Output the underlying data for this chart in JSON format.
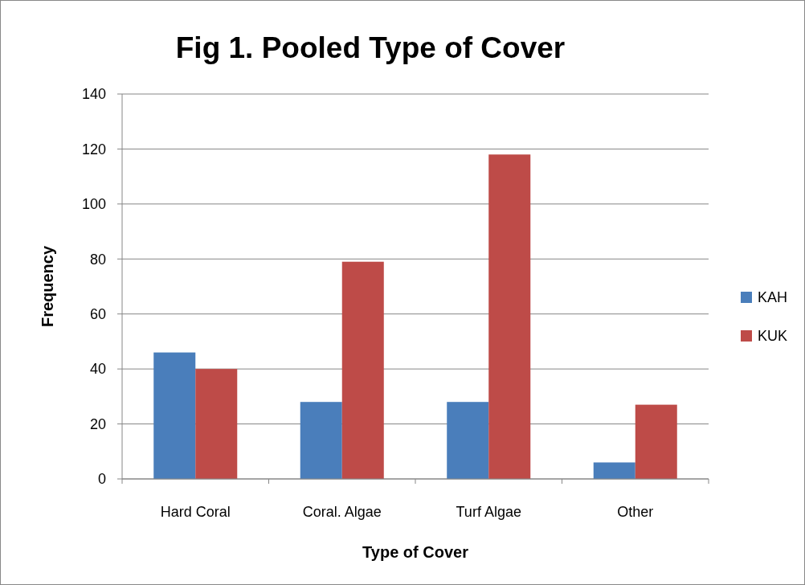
{
  "chart_data": {
    "type": "bar",
    "title": "Fig 1. Pooled Type of Cover",
    "xlabel": "Type of Cover",
    "ylabel": "Frequency",
    "categories": [
      "Hard Coral",
      "Coral. Algae",
      "Turf Algae",
      "Other"
    ],
    "series": [
      {
        "name": "KAH",
        "color": "#4a7ebb",
        "values": [
          46,
          28,
          28,
          6
        ]
      },
      {
        "name": "KUK",
        "color": "#be4b48",
        "values": [
          40,
          79,
          118,
          27
        ]
      }
    ],
    "ylim": [
      0,
      140
    ],
    "yticks": [
      0,
      20,
      40,
      60,
      80,
      100,
      120,
      140
    ],
    "grid": "y",
    "legend": "right"
  }
}
